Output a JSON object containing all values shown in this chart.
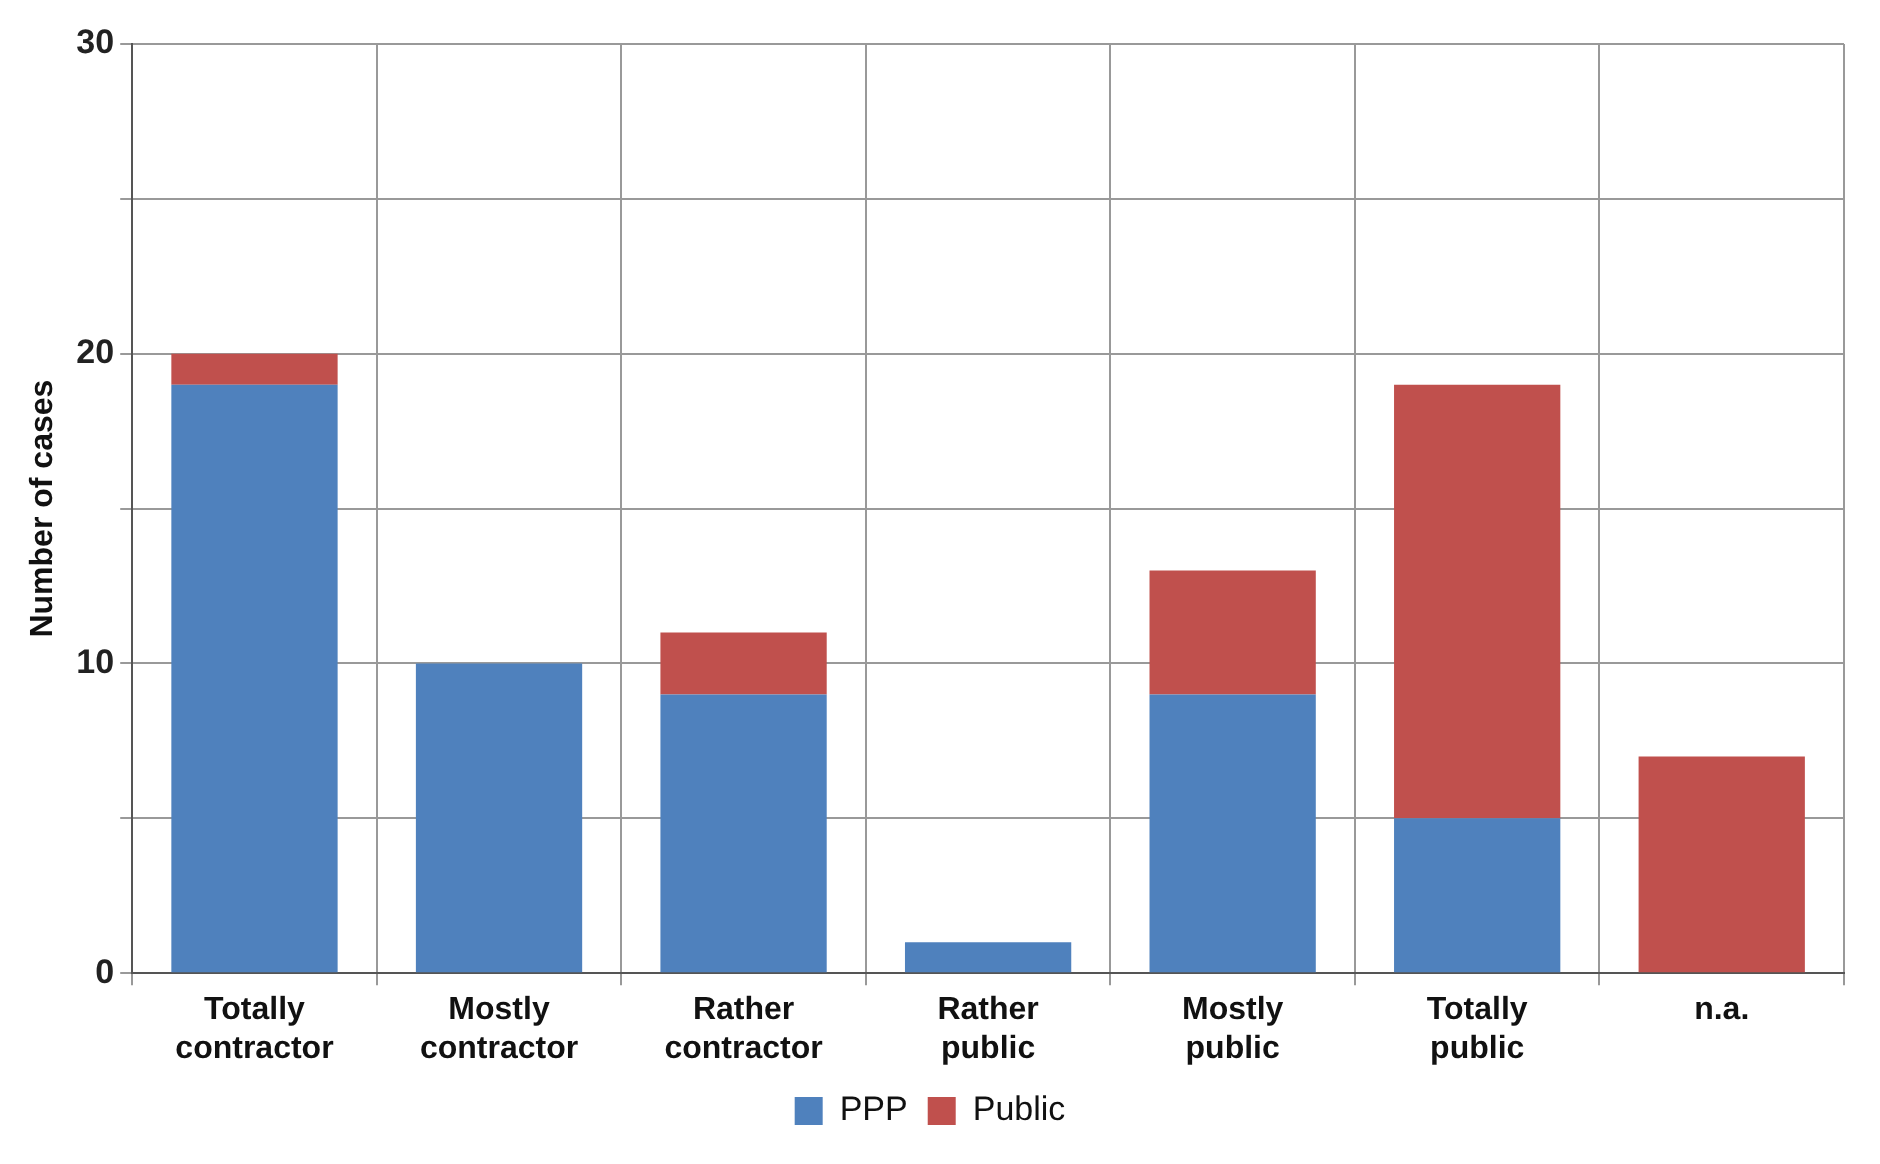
{
  "chart_data": {
    "type": "bar",
    "stacked": true,
    "ylabel": "Number of cases",
    "categories": [
      "Totally contractor",
      "Mostly contractor",
      "Rather contractor",
      "Rather public",
      "Mostly public",
      "Totally public",
      "n.a."
    ],
    "series": [
      {
        "name": "PPP",
        "color": "#4f81bd",
        "values": [
          19,
          10,
          9,
          1,
          9,
          5,
          0
        ]
      },
      {
        "name": "Public",
        "color": "#c0504d",
        "values": [
          1,
          0,
          2,
          0,
          4,
          14,
          7
        ]
      }
    ],
    "ylim": [
      0,
      30
    ],
    "yticks": [
      0,
      {
        "value": 5,
        "label": null
      },
      10,
      {
        "value": 15,
        "label": null
      },
      20,
      {
        "value": 25,
        "label": null
      },
      30
    ],
    "grid": true,
    "legend": "bottom"
  }
}
